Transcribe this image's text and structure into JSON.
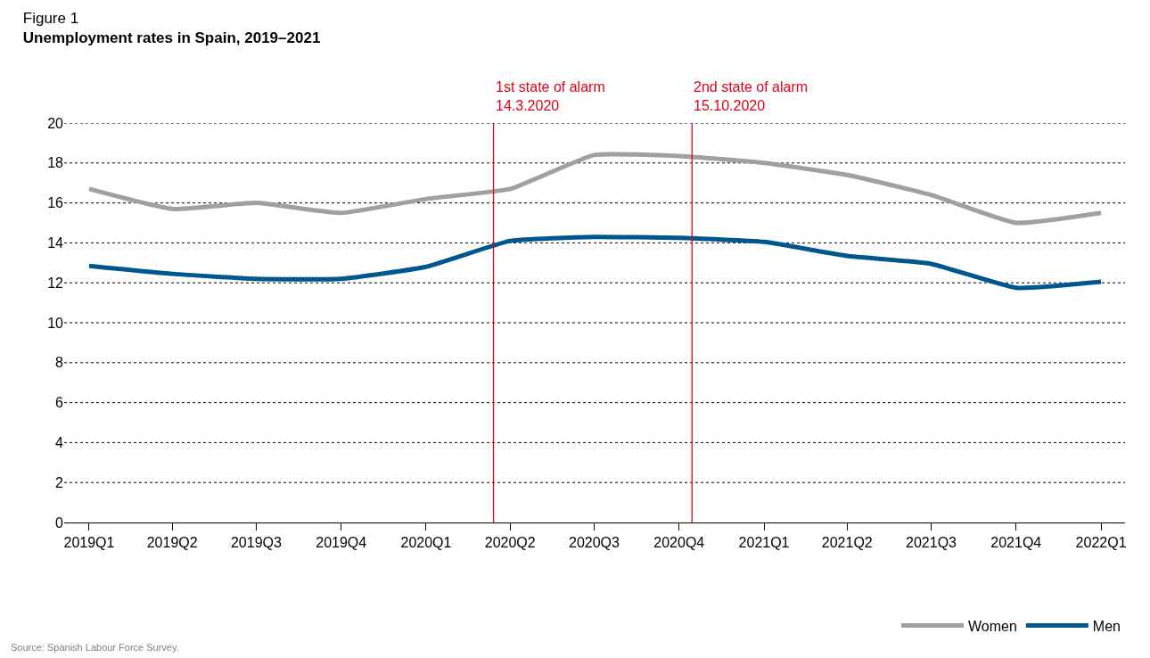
{
  "chart_data": {
    "type": "line",
    "title": "Figure 1",
    "subtitle": "Unemployment rates in Spain, 2019–2021",
    "x": [
      "2019-01",
      "2019-04",
      "2019-07",
      "2019-10",
      "2020-01",
      "2020-04",
      "2020-07",
      "2020-10",
      "2021-01",
      "2021-04",
      "2021-07",
      "2021-10",
      "2022-01"
    ],
    "xlim": [
      "2018-12-05",
      "2022-01-27"
    ],
    "xticks": [
      {
        "value": "2019-01",
        "label": "2019Q1"
      },
      {
        "value": "2019-04",
        "label": "2019Q2"
      },
      {
        "value": "2019-07",
        "label": "2019Q3"
      },
      {
        "value": "2019-10",
        "label": "2019Q4"
      },
      {
        "value": "2020-01",
        "label": "2020Q1"
      },
      {
        "value": "2020-04",
        "label": "2020Q2"
      },
      {
        "value": "2020-07",
        "label": "2020Q3"
      },
      {
        "value": "2020-10",
        "label": "2020Q4"
      },
      {
        "value": "2021-01",
        "label": "2021Q1"
      },
      {
        "value": "2021-04",
        "label": "2021Q2"
      },
      {
        "value": "2021-07",
        "label": "2021Q3"
      },
      {
        "value": "2021-10",
        "label": "2021Q4"
      },
      {
        "value": "2022-01",
        "label": "2022Q1"
      }
    ],
    "series": [
      {
        "name": "Women",
        "color": "#a0a0a0",
        "values": [
          16.7,
          15.7,
          16.0,
          15.5,
          16.2,
          16.7,
          18.4,
          18.35,
          18.0,
          17.4,
          16.4,
          15.0,
          15.5
        ]
      },
      {
        "name": "Men",
        "color": "#00578f",
        "values": [
          12.85,
          12.45,
          12.2,
          12.2,
          12.8,
          14.1,
          14.3,
          14.25,
          14.05,
          13.35,
          12.95,
          11.75,
          12.05
        ]
      }
    ],
    "ylim": [
      0,
      20
    ],
    "yticks": [
      0,
      2,
      4,
      6,
      8,
      10,
      12,
      14,
      16,
      18,
      20
    ],
    "grid": "y",
    "legend": "bottom right",
    "marker": "none",
    "line_style": "solid",
    "ref_lines": [
      {
        "axis": "x",
        "value": "2020-03-14",
        "label": "1st state of alarm\n14.3.2020",
        "color": "#e2001a"
      },
      {
        "axis": "x",
        "value": "2020-10-15",
        "label": "2nd state of alarm\n15.10.2020",
        "color": "#e2001a"
      }
    ],
    "annotations": [
      "Source: Spanish Labour Force Survey."
    ]
  }
}
